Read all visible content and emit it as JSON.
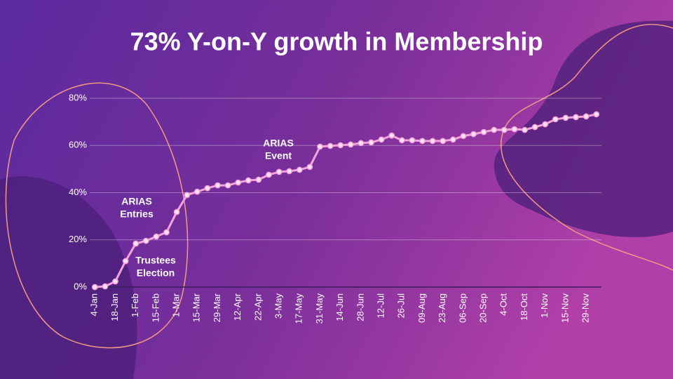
{
  "chart_data": {
    "type": "line",
    "title": "73% Y-on-Y growth in Membership",
    "categories": [
      "4-Jan",
      null,
      "18-Jan",
      null,
      "1-Feb",
      null,
      "15-Feb",
      null,
      "1-Mar",
      null,
      "15-Mar",
      null,
      "29-Mar",
      null,
      "12-Apr",
      null,
      "22-Apr",
      null,
      "3-May",
      null,
      "17-May",
      null,
      "31-May",
      null,
      "14-Jun",
      null,
      "28-Jun",
      null,
      "12-Jul",
      null,
      "26-Jul",
      null,
      "09-Aug",
      null,
      "23-Aug",
      null,
      "06-Sep",
      null,
      "20-Sep",
      null,
      "4-Oct",
      null,
      "18-Oct",
      null,
      "1-Nov",
      null,
      "15-Nov",
      null,
      "29-Nov",
      null
    ],
    "values": [
      0,
      0.3,
      2.4,
      11,
      18.4,
      19.6,
      21.4,
      23.2,
      31.8,
      39,
      40.4,
      41.9,
      43.1,
      43.1,
      44.3,
      45.2,
      45.5,
      47.6,
      48.8,
      49.1,
      49.7,
      50.9,
      59.5,
      59.8,
      60.1,
      60.4,
      61,
      61.3,
      62.5,
      64.2,
      62.2,
      62.2,
      61.9,
      61.9,
      61.9,
      62.5,
      64,
      64.8,
      65.7,
      66.6,
      66.6,
      66.9,
      66.6,
      67.8,
      69,
      71.1,
      71.7,
      72,
      72.3,
      73.2
    ],
    "color": "#f6a3dc",
    "ylim": [
      0,
      80
    ],
    "yticks": [
      {
        "value": 0,
        "label": "0%"
      },
      {
        "value": 20,
        "label": "20%"
      },
      {
        "value": 40,
        "label": "40%"
      },
      {
        "value": 60,
        "label": "60%"
      },
      {
        "value": 80,
        "label": "80%"
      }
    ],
    "grid": true,
    "annotations": [
      {
        "lines": [
          "ARIAS",
          "Entries"
        ]
      },
      {
        "lines": [
          "Trustees",
          "Election"
        ]
      },
      {
        "lines": [
          "ARIAS",
          "Event"
        ]
      }
    ]
  }
}
